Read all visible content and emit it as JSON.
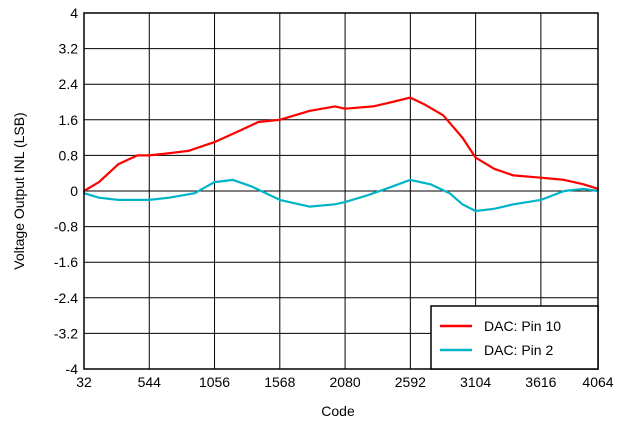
{
  "chart_data": {
    "type": "line",
    "title": "",
    "xlabel": "Code",
    "ylabel": "Voltage Output INL (LSB)",
    "xlim": [
      32,
      4064
    ],
    "ylim": [
      -4,
      4
    ],
    "x_ticks": [
      "32",
      "544",
      "1056",
      "1568",
      "2080",
      "2592",
      "3104",
      "3616",
      "4064"
    ],
    "y_ticks": [
      "4",
      "3.2",
      "2.4",
      "1.6",
      "0.8",
      "0",
      "-0.8",
      "-1.6",
      "-2.4",
      "-3.2",
      "-4"
    ],
    "grid": true,
    "legend_position": "bottom-right",
    "series": [
      {
        "name": "DAC: Pin 10",
        "color": "#ff0000",
        "x": [
          32,
          150,
          300,
          450,
          544,
          700,
          850,
          1056,
          1250,
          1400,
          1568,
          1800,
          2000,
          2080,
          2300,
          2450,
          2592,
          2700,
          2850,
          3000,
          3104,
          3250,
          3400,
          3616,
          3800,
          3950,
          4064
        ],
        "y": [
          0.0,
          0.2,
          0.6,
          0.8,
          0.8,
          0.85,
          0.9,
          1.1,
          1.35,
          1.55,
          1.6,
          1.8,
          1.9,
          1.85,
          1.9,
          2.0,
          2.1,
          1.95,
          1.7,
          1.2,
          0.75,
          0.5,
          0.35,
          0.3,
          0.25,
          0.15,
          0.05
        ]
      },
      {
        "name": "DAC: Pin 2",
        "color": "#00b4c8",
        "x": [
          32,
          150,
          300,
          544,
          700,
          900,
          1056,
          1200,
          1350,
          1568,
          1800,
          2000,
          2080,
          2250,
          2450,
          2592,
          2750,
          2900,
          3000,
          3104,
          3250,
          3400,
          3616,
          3800,
          3950,
          4064
        ],
        "y": [
          -0.05,
          -0.15,
          -0.2,
          -0.2,
          -0.15,
          -0.05,
          0.2,
          0.25,
          0.1,
          -0.2,
          -0.35,
          -0.3,
          -0.25,
          -0.1,
          0.1,
          0.25,
          0.15,
          -0.05,
          -0.3,
          -0.45,
          -0.4,
          -0.3,
          -0.2,
          0.0,
          0.05,
          0.0
        ]
      }
    ]
  }
}
